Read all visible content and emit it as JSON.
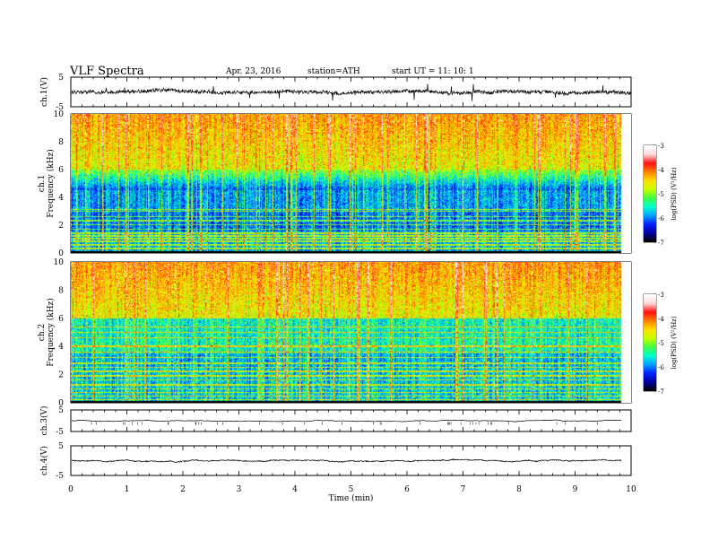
{
  "header": {
    "title": "VLF Spectra",
    "date": "Apr. 23, 2016",
    "station": "station=ATH",
    "start_ut": "start UT =  11: 10: 1"
  },
  "colors": {
    "colormap": [
      "#000000",
      "#0000a0",
      "#0020ff",
      "#00a0ff",
      "#00ffd0",
      "#40ff40",
      "#c8ff00",
      "#ffe000",
      "#ff8000",
      "#ff1010",
      "#ffd8d8",
      "#ffffff"
    ],
    "trace": "#000000",
    "axis": "#000000"
  },
  "chart_data": [
    {
      "type": "line",
      "name": "ch1-waveform",
      "ylabel": "ch.1(V)",
      "ylim": [
        -5,
        5
      ],
      "yticks": [
        "5",
        "-5"
      ],
      "xlim": [
        0,
        10
      ],
      "baseline": 0,
      "amplitude": 1.2
    },
    {
      "type": "heatmap",
      "name": "ch1-spectrogram",
      "ylabel": "ch.1 Frequency (kHz)",
      "ylim": [
        0,
        10
      ],
      "yticks": [
        "0",
        "2",
        "4",
        "6",
        "8",
        "10"
      ],
      "xlim": [
        0,
        9.83
      ],
      "colorbar": {
        "label": "log(PSD) (V²/Hz)",
        "range": [
          -7,
          -3
        ],
        "ticks": [
          "-3",
          "-4",
          "-5",
          "-6",
          "-7"
        ]
      }
    },
    {
      "type": "heatmap",
      "name": "ch2-spectrogram",
      "ylabel": "ch.2 Frequency (kHz)",
      "ylim": [
        0,
        10
      ],
      "yticks": [
        "0",
        "2",
        "4",
        "6",
        "8",
        "10"
      ],
      "xlim": [
        0,
        9.83
      ],
      "colorbar": {
        "label": "log(PSD) (V²/Hz)",
        "range": [
          -7,
          -3
        ],
        "ticks": [
          "-3",
          "-4",
          "-5",
          "-6",
          "-7"
        ]
      }
    },
    {
      "type": "line",
      "name": "ch3-waveform",
      "ylabel": "ch.3(V)",
      "ylim": [
        -5,
        5
      ],
      "yticks": [
        "5",
        "-5"
      ],
      "xlim": [
        0,
        9.83
      ],
      "baseline": 0,
      "amplitude": 0.05
    },
    {
      "type": "line",
      "name": "ch4-waveform",
      "ylabel": "ch.4(V)",
      "ylim": [
        -5,
        5
      ],
      "yticks": [
        "5",
        "-5"
      ],
      "xlim": [
        0,
        9.83
      ],
      "baseline": 0,
      "amplitude": 0.3
    }
  ],
  "x_axis": {
    "label": "Time (min)",
    "range": [
      0,
      10
    ],
    "ticks": [
      "0",
      "1",
      "2",
      "3",
      "4",
      "5",
      "6",
      "7",
      "8",
      "9",
      "10"
    ]
  }
}
